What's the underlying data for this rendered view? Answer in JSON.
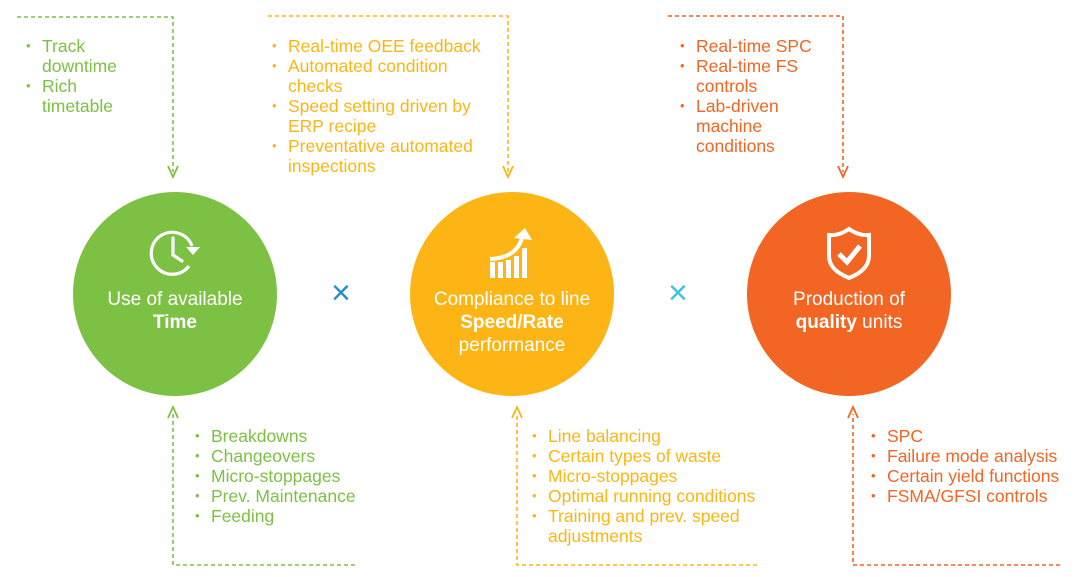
{
  "colors": {
    "time": "#7cc143",
    "speed": "#fdb515",
    "quality": "#f26522",
    "times_1": "#2a8fc7",
    "times_2": "#3ec3e6"
  },
  "circles": [
    {
      "icon": "clock-refresh-icon",
      "line1": "Use of available",
      "bold": "Time",
      "rest": ""
    },
    {
      "icon": "growth-chart-icon",
      "line1": "Compliance to line",
      "bold": "Speed/Rate",
      "rest": "performance"
    },
    {
      "icon": "shield-check-icon",
      "line1": "Production of",
      "bold": "quality",
      "rest": " units"
    }
  ],
  "operator": "×",
  "top_lists": {
    "time": [
      "Track downtime",
      "Rich timetable"
    ],
    "speed": [
      "Real-time OEE feedback",
      "Automated condition checks",
      "Speed setting driven by ERP recipe",
      "Preventative automated inspections"
    ],
    "quality": [
      "Real-time SPC",
      "Real-time FS controls",
      "Lab-driven machine conditions"
    ]
  },
  "bottom_lists": {
    "time": [
      "Breakdowns",
      "Changeovers",
      "Micro-stoppages",
      "Prev. Maintenance",
      "Feeding"
    ],
    "speed": [
      "Line balancing",
      "Certain types of waste",
      "Micro-stoppages",
      "Optimal running conditions",
      "Training and prev. speed adjustments"
    ],
    "quality": [
      "SPC",
      "Failure mode analysis",
      "Certain yield functions",
      "FSMA/GFSI controls"
    ]
  }
}
